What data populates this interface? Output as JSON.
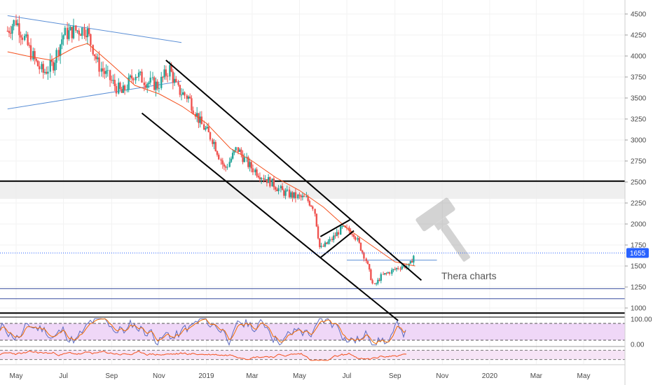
{
  "watermark": {
    "text": "Thera charts",
    "icon": "gavel-icon"
  },
  "colors": {
    "up": "#26a69a",
    "down": "#ef5350",
    "ema": "#f4511e",
    "trend": "#000000",
    "fan": "#5b8fd6",
    "hline": "#3b4fa0",
    "zone": "#ebebeb",
    "rsi_bg": "#efd7f7",
    "stoch_bg": "#f6e4f6",
    "last_price": "#2962ff",
    "stoch_k": "#5c6bc0",
    "stoch_d": "#ef6c00"
  },
  "chart_data": {
    "type": "candlestick",
    "price_axis": {
      "range": [
        900,
        4620
      ],
      "ticks": [
        "4500",
        "4250",
        "4000",
        "3750",
        "3500",
        "3250",
        "3000",
        "2750",
        "2500",
        "2250",
        "2000",
        "1750",
        "1500",
        "1250",
        "1000"
      ],
      "last_price": 1655,
      "last_price_label": "1655"
    },
    "time_axis": {
      "labels": [
        {
          "text": "May",
          "date": "2018-05-01"
        },
        {
          "text": "Jul",
          "date": "2018-07-01"
        },
        {
          "text": "Sep",
          "date": "2018-09-01"
        },
        {
          "text": "Nov",
          "date": "2018-11-01"
        },
        {
          "text": "2019",
          "date": "2019-01-01"
        },
        {
          "text": "Mar",
          "date": "2019-03-01"
        },
        {
          "text": "May",
          "date": "2019-05-01"
        },
        {
          "text": "Jul",
          "date": "2019-07-01"
        },
        {
          "text": "Sep",
          "date": "2019-09-01"
        },
        {
          "text": "Nov",
          "date": "2019-11-01"
        },
        {
          "text": "2020",
          "date": "2020-01-01"
        },
        {
          "text": "Mar",
          "date": "2020-03-01"
        },
        {
          "text": "May",
          "date": "2020-05-01"
        }
      ]
    },
    "price_path": [
      [
        "2018-04-20",
        4300
      ],
      [
        "2018-05-01",
        4420
      ],
      [
        "2018-05-15",
        4150
      ],
      [
        "2018-05-25",
        3950
      ],
      [
        "2018-06-05",
        3800
      ],
      [
        "2018-06-18",
        3900
      ],
      [
        "2018-07-01",
        4250
      ],
      [
        "2018-07-15",
        4300
      ],
      [
        "2018-07-31",
        4320
      ],
      [
        "2018-08-15",
        3900
      ],
      [
        "2018-09-01",
        3700
      ],
      [
        "2018-09-15",
        3550
      ],
      [
        "2018-10-01",
        3800
      ],
      [
        "2018-10-15",
        3700
      ],
      [
        "2018-10-31",
        3650
      ],
      [
        "2018-11-15",
        3850
      ],
      [
        "2018-11-25",
        3600
      ],
      [
        "2018-12-10",
        3500
      ],
      [
        "2018-12-25",
        3200
      ],
      [
        "2019-01-10",
        3000
      ],
      [
        "2019-01-25",
        2650
      ],
      [
        "2019-02-10",
        2900
      ],
      [
        "2019-02-25",
        2700
      ],
      [
        "2019-03-10",
        2600
      ],
      [
        "2019-03-25",
        2500
      ],
      [
        "2019-04-10",
        2380
      ],
      [
        "2019-04-25",
        2330
      ],
      [
        "2019-05-10",
        2300
      ],
      [
        "2019-05-20",
        2200
      ],
      [
        "2019-05-28",
        1700
      ],
      [
        "2019-06-10",
        1800
      ],
      [
        "2019-06-25",
        1950
      ],
      [
        "2019-07-10",
        1900
      ],
      [
        "2019-07-25",
        1600
      ],
      [
        "2019-08-05",
        1250
      ],
      [
        "2019-08-15",
        1380
      ],
      [
        "2019-08-30",
        1450
      ],
      [
        "2019-09-10",
        1500
      ],
      [
        "2019-09-20",
        1500
      ],
      [
        "2019-09-27",
        1655
      ]
    ],
    "ema_path": [
      [
        "2018-04-20",
        4050
      ],
      [
        "2018-05-15",
        4000
      ],
      [
        "2018-06-15",
        3950
      ],
      [
        "2018-07-15",
        4100
      ],
      [
        "2018-08-01",
        4150
      ],
      [
        "2018-09-01",
        3900
      ],
      [
        "2018-10-01",
        3650
      ],
      [
        "2018-11-01",
        3550
      ],
      [
        "2018-12-01",
        3400
      ],
      [
        "2019-01-01",
        3200
      ],
      [
        "2019-02-01",
        2900
      ],
      [
        "2019-03-01",
        2750
      ],
      [
        "2019-04-01",
        2550
      ],
      [
        "2019-05-01",
        2400
      ],
      [
        "2019-06-01",
        2200
      ],
      [
        "2019-07-01",
        1950
      ],
      [
        "2019-08-01",
        1750
      ],
      [
        "2019-09-01",
        1550
      ],
      [
        "2019-09-27",
        1500
      ]
    ],
    "trendlines": [
      {
        "role": "channel-upper",
        "points": [
          [
            "2018-11-10",
            3950
          ],
          [
            "2019-10-05",
            1330
          ]
        ]
      },
      {
        "role": "channel-lower",
        "points": [
          [
            "2018-10-10",
            3320
          ],
          [
            "2019-09-05",
            850
          ]
        ]
      },
      {
        "role": "flag-upper",
        "points": [
          [
            "2019-05-28",
            1850
          ],
          [
            "2019-07-05",
            2050
          ]
        ]
      },
      {
        "role": "flag-lower",
        "points": [
          [
            "2019-05-28",
            1600
          ],
          [
            "2019-07-10",
            1920
          ]
        ]
      }
    ],
    "fan_lines": [
      {
        "points": [
          [
            "2018-04-20",
            4480
          ],
          [
            "2018-11-30",
            4160
          ]
        ]
      },
      {
        "points": [
          [
            "2018-04-20",
            3370
          ],
          [
            "2018-11-30",
            3700
          ]
        ]
      }
    ],
    "resistance_zone": {
      "from": 2300,
      "to": 2510
    },
    "horizontal_lines": [
      {
        "price": 2510,
        "style": "heavy"
      },
      {
        "price": 1230,
        "style": "thin"
      },
      {
        "price": 1110,
        "style": "thin"
      },
      {
        "price": 940,
        "style": "heavy"
      }
    ],
    "segment_line": {
      "price": 1570,
      "from": "2019-07-01",
      "to": "2019-10-25"
    },
    "rsi": {
      "ticks": [
        "100.00",
        "0.00"
      ],
      "upper": 80,
      "lower": 20
    },
    "stoch": {
      "upper": 80,
      "lower": 20
    }
  }
}
